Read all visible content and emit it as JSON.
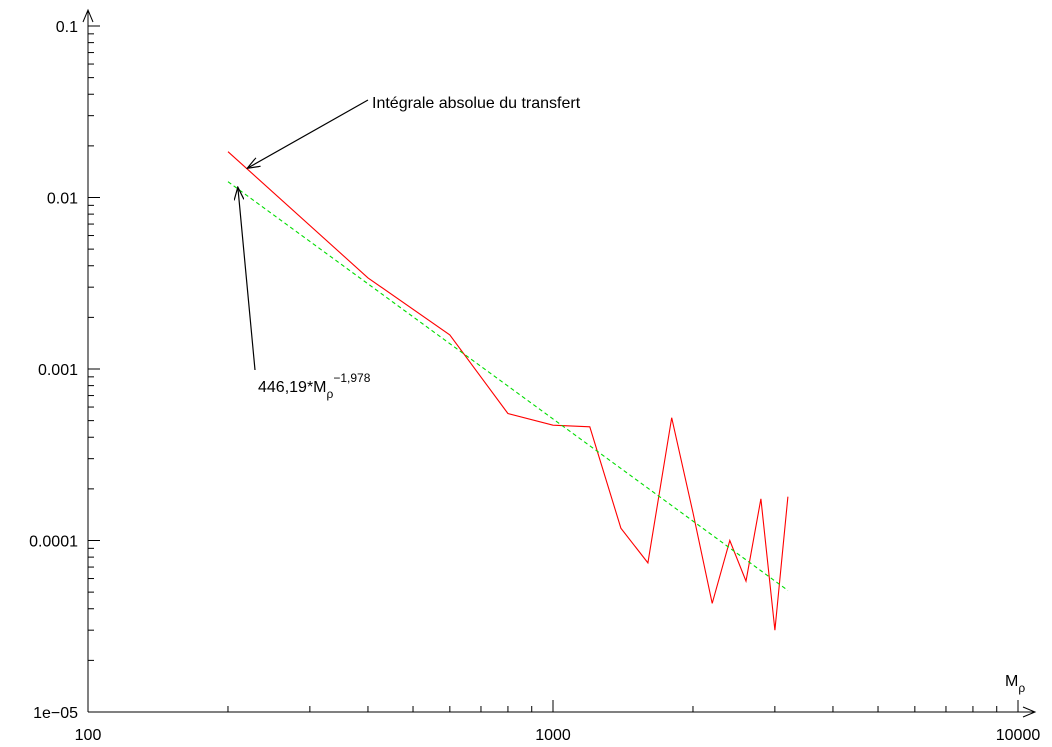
{
  "chart_data": {
    "type": "line",
    "xscale": "log",
    "yscale": "log",
    "xlim": [
      100,
      10000
    ],
    "ylim": [
      1e-05,
      0.1
    ],
    "x_ticks": [
      100,
      1000,
      10000
    ],
    "x_tick_labels": [
      "100",
      "1000",
      "10000"
    ],
    "y_ticks": [
      1e-05,
      0.0001,
      0.001,
      0.01,
      0.1
    ],
    "y_tick_labels": [
      "1e−05",
      "0.0001",
      "0.001",
      "0.01",
      "0.1"
    ],
    "xlabel": "M",
    "xlabel_sub": "ρ",
    "ylabel": "",
    "grid": false,
    "series": [
      {
        "name": "Intégrale absolue du transfert",
        "color": "#ff0000",
        "style": "solid",
        "x": [
          200,
          400,
          600,
          800,
          1000,
          1200,
          1400,
          1600,
          1800,
          2000,
          2200,
          2400,
          2600,
          2800,
          3000,
          3200
        ],
        "y": [
          0.0185,
          0.0034,
          0.00158,
          0.00055,
          0.00047,
          0.00046,
          0.000118,
          7.4e-05,
          0.00052,
          0.000145,
          4.3e-05,
          0.0001,
          5.8e-05,
          0.000175,
          3e-05,
          0.00018
        ]
      },
      {
        "name": "446,19*Mρ^−1,978",
        "color": "#00dd00",
        "style": "dashed",
        "x": [
          200,
          3200
        ],
        "y": [
          0.01236,
          5.12e-05
        ]
      }
    ],
    "annotations": [
      {
        "label": "Intégrale absolue du transfert",
        "target_x": 220,
        "target_y": 0.0148
      },
      {
        "label_main": "446,19*M",
        "label_sub": "ρ",
        "label_sup": "−1,978",
        "target_x": 210,
        "target_y": 0.0115
      }
    ]
  }
}
